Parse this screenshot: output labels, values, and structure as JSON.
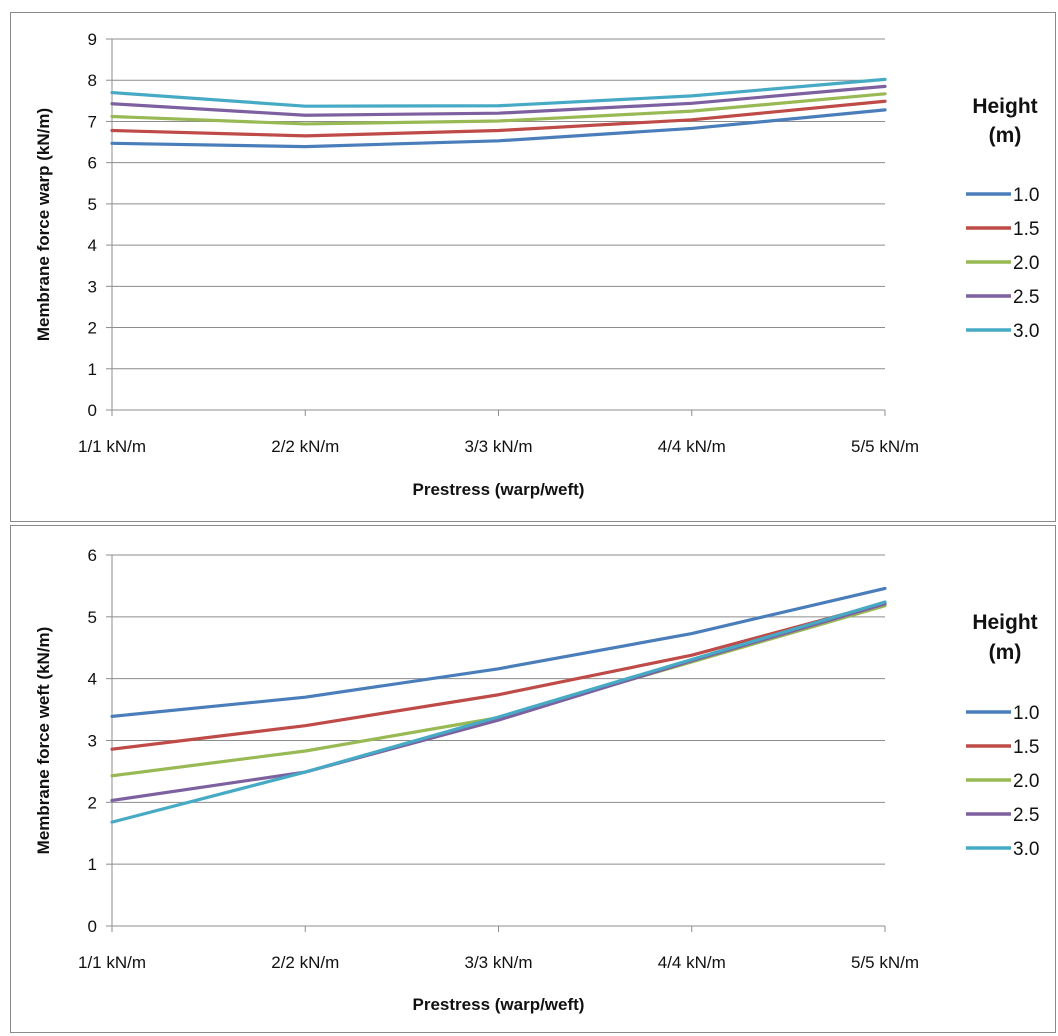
{
  "legend": {
    "title_line1": "Height",
    "title_line2": "(m)"
  },
  "chart_data": [
    {
      "type": "line",
      "xlabel": "Prestress (warp/weft)",
      "ylabel": "Membrane force warp (kN/m)",
      "categories": [
        "1/1 kN/m",
        "2/2 kN/m",
        "3/3 kN/m",
        "4/4 kN/m",
        "5/5 kN/m"
      ],
      "ylim": [
        0,
        9
      ],
      "yticks": [
        0,
        1,
        2,
        3,
        4,
        5,
        6,
        7,
        8,
        9
      ],
      "grid": true,
      "legend_position": "right",
      "series": [
        {
          "name": "1.0",
          "color": "#4a7ebb",
          "values": [
            6.47,
            6.39,
            6.53,
            6.83,
            7.28
          ]
        },
        {
          "name": "1.5",
          "color": "#be4b48",
          "values": [
            6.78,
            6.65,
            6.78,
            7.04,
            7.49
          ]
        },
        {
          "name": "2.0",
          "color": "#98b954",
          "values": [
            7.12,
            6.94,
            7.01,
            7.25,
            7.67
          ]
        },
        {
          "name": "2.5",
          "color": "#7d60a0",
          "values": [
            7.43,
            7.15,
            7.2,
            7.44,
            7.85
          ]
        },
        {
          "name": "3.0",
          "color": "#46aac5",
          "values": [
            7.7,
            7.37,
            7.38,
            7.62,
            8.02
          ]
        }
      ]
    },
    {
      "type": "line",
      "xlabel": "Prestress (warp/weft)",
      "ylabel": "Membrane force weft (kN/m)",
      "categories": [
        "1/1 kN/m",
        "2/2 kN/m",
        "3/3 kN/m",
        "4/4 kN/m",
        "5/5 kN/m"
      ],
      "ylim": [
        0,
        6
      ],
      "yticks": [
        0,
        1,
        2,
        3,
        4,
        5,
        6
      ],
      "grid": true,
      "legend_position": "right",
      "series": [
        {
          "name": "1.0",
          "color": "#4a7ebb",
          "values": [
            3.39,
            3.7,
            4.16,
            4.73,
            5.46
          ]
        },
        {
          "name": "1.5",
          "color": "#be4b48",
          "values": [
            2.86,
            3.24,
            3.74,
            4.38,
            5.22
          ]
        },
        {
          "name": "2.0",
          "color": "#98b954",
          "values": [
            2.43,
            2.83,
            3.37,
            4.27,
            5.18
          ]
        },
        {
          "name": "2.5",
          "color": "#7d60a0",
          "values": [
            2.03,
            2.49,
            3.33,
            4.29,
            5.21
          ]
        },
        {
          "name": "3.0",
          "color": "#46aac5",
          "values": [
            1.68,
            2.49,
            3.38,
            4.31,
            5.24
          ]
        }
      ]
    }
  ]
}
